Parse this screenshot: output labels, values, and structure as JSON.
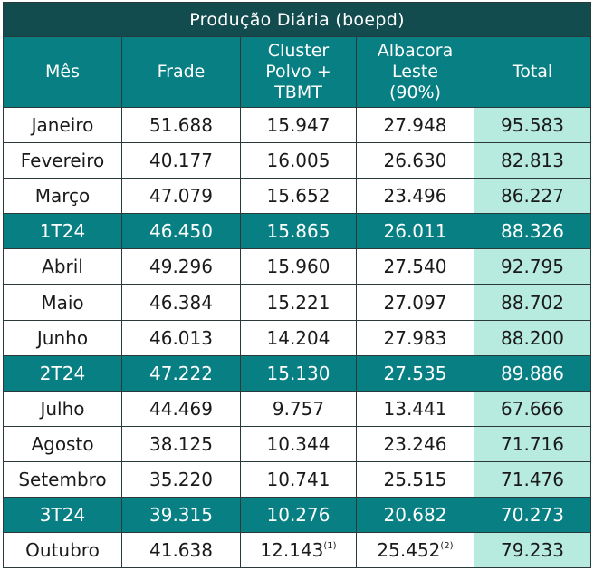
{
  "table": {
    "title": "Produção Diária (boepd)",
    "headers": {
      "month": "Mês",
      "frade": "Frade",
      "polvo_line1": "Cluster",
      "polvo_line2": "Polvo +",
      "polvo_line3": "TBMT",
      "albacora_line1": "Albacora",
      "albacora_line2": "Leste",
      "albacora_line3": "(90%)",
      "total": "Total"
    },
    "rows": [
      {
        "label": "Janeiro",
        "frade": "51.688",
        "polvo": "15.947",
        "albacora": "27.948",
        "total": "95.583"
      },
      {
        "label": "Fevereiro",
        "frade": "40.177",
        "polvo": "16.005",
        "albacora": "26.630",
        "total": "82.813"
      },
      {
        "label": "Março",
        "frade": "47.079",
        "polvo": "15.652",
        "albacora": "23.496",
        "total": "86.227"
      },
      {
        "label": "1T24",
        "frade": "46.450",
        "polvo": "15.865",
        "albacora": "26.011",
        "total": "88.326"
      },
      {
        "label": "Abril",
        "frade": "49.296",
        "polvo": "15.960",
        "albacora": "27.540",
        "total": "92.795"
      },
      {
        "label": "Maio",
        "frade": "46.384",
        "polvo": "15.221",
        "albacora": "27.097",
        "total": "88.702"
      },
      {
        "label": "Junho",
        "frade": "46.013",
        "polvo": "14.204",
        "albacora": "27.983",
        "total": "88.200"
      },
      {
        "label": "2T24",
        "frade": "47.222",
        "polvo": "15.130",
        "albacora": "27.535",
        "total": "89.886"
      },
      {
        "label": "Julho",
        "frade": "44.469",
        "polvo": "9.757",
        "albacora": "13.441",
        "total": "67.666"
      },
      {
        "label": "Agosto",
        "frade": "38.125",
        "polvo": "10.344",
        "albacora": "23.246",
        "total": "71.716"
      },
      {
        "label": "Setembro",
        "frade": "35.220",
        "polvo": "10.741",
        "albacora": "25.515",
        "total": "71.476"
      },
      {
        "label": "3T24",
        "frade": "39.315",
        "polvo": "10.276",
        "albacora": "20.682",
        "total": "70.273"
      },
      {
        "label": "Outubro",
        "frade": "41.638",
        "polvo": "12.143",
        "polvo_note": "(1)",
        "albacora": "25.452",
        "albacora_note": "(2)",
        "total": "79.233"
      }
    ]
  },
  "colors": {
    "title_bg": "#124c4f",
    "header_bg": "#087f83",
    "quarter_bg": "#087f83",
    "total_bg": "#b8ebdf",
    "border": "#2a3a3a"
  }
}
